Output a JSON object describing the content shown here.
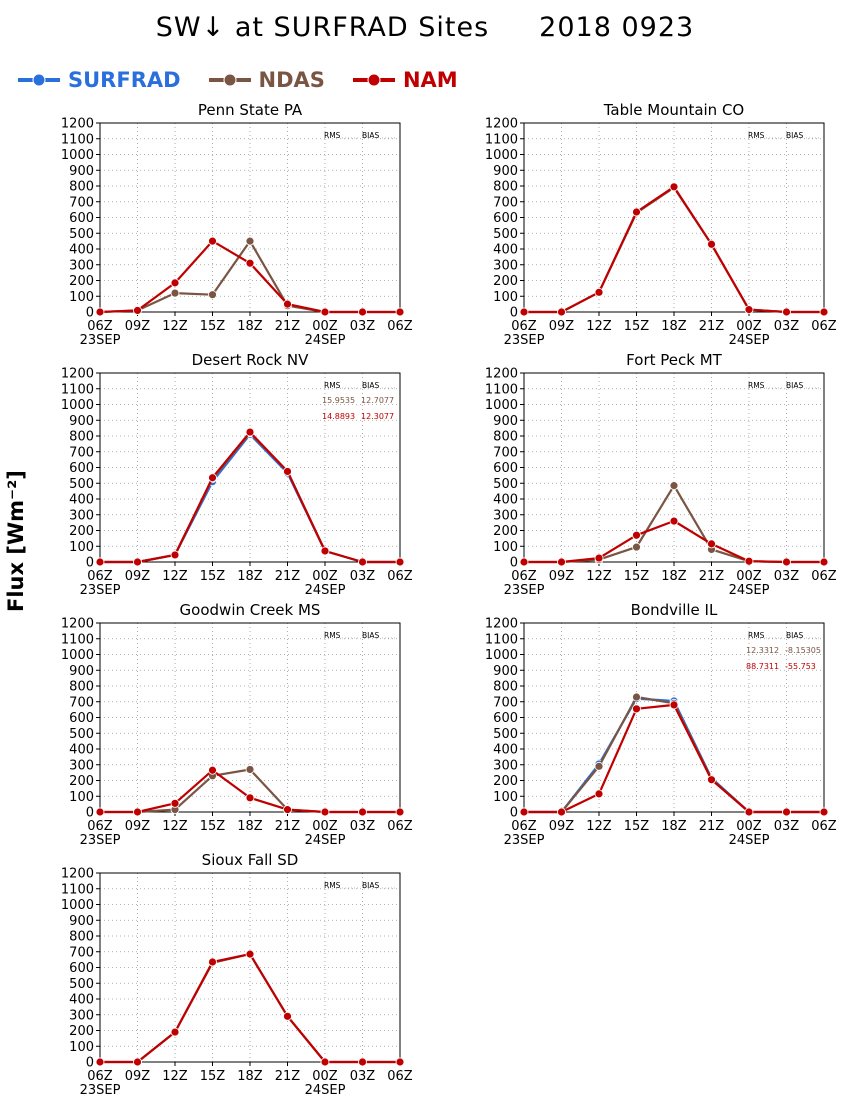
{
  "page": {
    "title": "SW↓ at SURFRAD Sites",
    "date": "2018 0923",
    "ylabel": "Flux [Wm⁻²]"
  },
  "legend": [
    {
      "name": "SURFRAD",
      "color": "#2a6fdb"
    },
    {
      "name": "NDAS",
      "color": "#7a5543"
    },
    {
      "name": "NAM",
      "color": "#c00000"
    }
  ],
  "chart_data": [
    {
      "type": "line",
      "title": "Penn State PA",
      "x": [
        "06Z",
        "09Z",
        "12Z",
        "15Z",
        "18Z",
        "21Z",
        "00Z",
        "03Z",
        "06Z"
      ],
      "date_labels": [
        "23SEP",
        "24SEP"
      ],
      "ylim": [
        0,
        1200
      ],
      "yticks": [
        0,
        100,
        200,
        300,
        400,
        500,
        600,
        700,
        800,
        900,
        1000,
        1100,
        1200
      ],
      "grid": true,
      "stats_header": [
        "RMS",
        "BIAS"
      ],
      "stats": [],
      "series": [
        {
          "name": "NDAS",
          "values": [
            0,
            10,
            120,
            110,
            450,
            40,
            0,
            0,
            0
          ]
        },
        {
          "name": "NAM",
          "values": [
            0,
            10,
            185,
            450,
            310,
            50,
            0,
            0,
            0
          ]
        }
      ]
    },
    {
      "type": "line",
      "title": "Table Mountain CO",
      "x": [
        "06Z",
        "09Z",
        "12Z",
        "15Z",
        "18Z",
        "21Z",
        "00Z",
        "03Z",
        "06Z"
      ],
      "date_labels": [
        "23SEP",
        "24SEP"
      ],
      "ylim": [
        0,
        1200
      ],
      "yticks": [
        0,
        100,
        200,
        300,
        400,
        500,
        600,
        700,
        800,
        900,
        1000,
        1100,
        1200
      ],
      "grid": true,
      "stats_header": [
        "RMS",
        "BIAS"
      ],
      "stats": [],
      "series": [
        {
          "name": "NDAS",
          "values": [
            0,
            0,
            125,
            630,
            790,
            430,
            15,
            0,
            0
          ]
        },
        {
          "name": "NAM",
          "values": [
            0,
            0,
            125,
            635,
            795,
            430,
            15,
            0,
            0
          ]
        }
      ]
    },
    {
      "type": "line",
      "title": "Desert Rock NV",
      "x": [
        "06Z",
        "09Z",
        "12Z",
        "15Z",
        "18Z",
        "21Z",
        "00Z",
        "03Z",
        "06Z"
      ],
      "date_labels": [
        "23SEP",
        "24SEP"
      ],
      "ylim": [
        0,
        1200
      ],
      "yticks": [
        0,
        100,
        200,
        300,
        400,
        500,
        600,
        700,
        800,
        900,
        1000,
        1100,
        1200
      ],
      "grid": true,
      "stats_header": [
        "RMS",
        "BIAS"
      ],
      "stats": [
        {
          "series": "NDAS",
          "rms": "15.9535",
          "bias": "12.7077"
        },
        {
          "series": "NAM",
          "rms": "14.8893",
          "bias": "12.3077"
        }
      ],
      "series": [
        {
          "name": "SURFRAD",
          "values": [
            0,
            0,
            45,
            510,
            810,
            565,
            70,
            0,
            0
          ]
        },
        {
          "name": "NDAS",
          "values": [
            0,
            0,
            45,
            530,
            820,
            575,
            70,
            0,
            0
          ]
        },
        {
          "name": "NAM",
          "values": [
            0,
            0,
            45,
            535,
            825,
            575,
            70,
            0,
            0
          ]
        }
      ]
    },
    {
      "type": "line",
      "title": "Fort Peck MT",
      "x": [
        "06Z",
        "09Z",
        "12Z",
        "15Z",
        "18Z",
        "21Z",
        "00Z",
        "03Z",
        "06Z"
      ],
      "date_labels": [
        "23SEP",
        "24SEP"
      ],
      "ylim": [
        0,
        1200
      ],
      "yticks": [
        0,
        100,
        200,
        300,
        400,
        500,
        600,
        700,
        800,
        900,
        1000,
        1100,
        1200
      ],
      "grid": true,
      "stats_header": [
        "RMS",
        "BIAS"
      ],
      "stats": [],
      "series": [
        {
          "name": "NDAS",
          "values": [
            0,
            0,
            15,
            95,
            485,
            80,
            5,
            0,
            0
          ]
        },
        {
          "name": "NAM",
          "values": [
            0,
            0,
            25,
            170,
            260,
            115,
            5,
            0,
            0
          ]
        }
      ]
    },
    {
      "type": "line",
      "title": "Goodwin Creek MS",
      "x": [
        "06Z",
        "09Z",
        "12Z",
        "15Z",
        "18Z",
        "21Z",
        "00Z",
        "03Z",
        "06Z"
      ],
      "date_labels": [
        "23SEP",
        "24SEP"
      ],
      "ylim": [
        0,
        1200
      ],
      "yticks": [
        0,
        100,
        200,
        300,
        400,
        500,
        600,
        700,
        800,
        900,
        1000,
        1100,
        1200
      ],
      "grid": true,
      "stats_header": [
        "RMS",
        "BIAS"
      ],
      "stats": [],
      "series": [
        {
          "name": "NDAS",
          "values": [
            0,
            0,
            15,
            230,
            270,
            15,
            0,
            0,
            0
          ]
        },
        {
          "name": "NAM",
          "values": [
            0,
            0,
            55,
            265,
            90,
            15,
            0,
            0,
            0
          ]
        }
      ]
    },
    {
      "type": "line",
      "title": "Bondville IL",
      "x": [
        "06Z",
        "09Z",
        "12Z",
        "15Z",
        "18Z",
        "21Z",
        "00Z",
        "03Z",
        "06Z"
      ],
      "date_labels": [
        "23SEP",
        "24SEP"
      ],
      "ylim": [
        0,
        1200
      ],
      "yticks": [
        0,
        100,
        200,
        300,
        400,
        500,
        600,
        700,
        800,
        900,
        1000,
        1100,
        1200
      ],
      "grid": true,
      "stats_header": [
        "RMS",
        "BIAS"
      ],
      "stats": [
        {
          "series": "NDAS",
          "rms": "12.3312",
          "bias": "-8.15305"
        },
        {
          "series": "NAM",
          "rms": "88.7311",
          "bias": "-55.753"
        }
      ],
      "series": [
        {
          "name": "SURFRAD",
          "values": [
            0,
            0,
            305,
            720,
            705,
            215,
            0,
            0,
            0
          ]
        },
        {
          "name": "NDAS",
          "values": [
            0,
            0,
            290,
            730,
            690,
            210,
            0,
            0,
            0
          ]
        },
        {
          "name": "NAM",
          "values": [
            0,
            0,
            115,
            655,
            680,
            205,
            0,
            0,
            0
          ]
        }
      ]
    },
    {
      "type": "line",
      "title": "Sioux Fall SD",
      "x": [
        "06Z",
        "09Z",
        "12Z",
        "15Z",
        "18Z",
        "21Z",
        "00Z",
        "03Z",
        "06Z"
      ],
      "date_labels": [
        "23SEP",
        "24SEP"
      ],
      "ylim": [
        0,
        1200
      ],
      "yticks": [
        0,
        100,
        200,
        300,
        400,
        500,
        600,
        700,
        800,
        900,
        1000,
        1100,
        1200
      ],
      "grid": true,
      "stats_header": [
        "RMS",
        "BIAS"
      ],
      "stats": [],
      "series": [
        {
          "name": "NDAS",
          "values": [
            0,
            0,
            190,
            630,
            685,
            290,
            0,
            0,
            0
          ]
        },
        {
          "name": "NAM",
          "values": [
            0,
            0,
            190,
            635,
            685,
            290,
            0,
            0,
            0
          ]
        }
      ]
    }
  ]
}
